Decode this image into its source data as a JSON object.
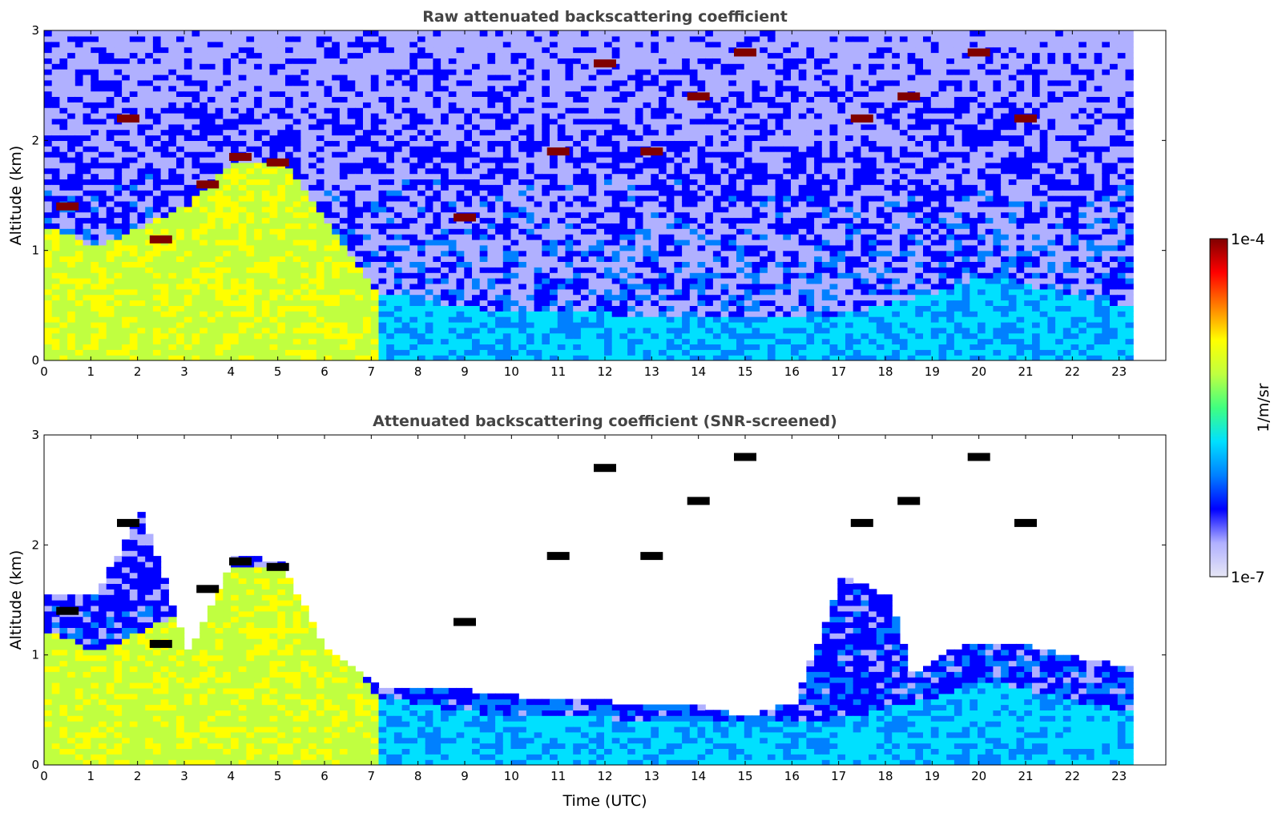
{
  "chart_data": [
    {
      "type": "heatmap",
      "title": "Raw attenuated backscattering coefficient",
      "xlabel": "",
      "ylabel": "Altitude (km)",
      "xlim": [
        0,
        24
      ],
      "ylim": [
        0,
        3
      ],
      "xticks": [
        "0",
        "1",
        "2",
        "3",
        "4",
        "5",
        "6",
        "7",
        "8",
        "9",
        "10",
        "11",
        "12",
        "13",
        "14",
        "15",
        "16",
        "17",
        "18",
        "19",
        "20",
        "21",
        "22",
        "23"
      ],
      "yticks": [
        "0",
        "1",
        "2",
        "3"
      ],
      "data_end_time": 23.3,
      "layers": [
        {
          "name": "boundary layer (aerosol)",
          "points": [
            [
              0,
              1.2
            ],
            [
              1,
              1.0
            ],
            [
              2,
              1.2
            ],
            [
              3,
              1.4
            ],
            [
              4,
              1.8
            ],
            [
              5,
              1.8
            ],
            [
              7,
              0.6
            ],
            [
              9.2,
              0.45
            ],
            [
              12,
              0.4
            ],
            [
              15,
              0.35
            ],
            [
              17,
              0.4
            ],
            [
              19,
              0.6
            ],
            [
              20,
              0.75
            ],
            [
              22,
              0.55
            ],
            [
              23.3,
              0.45
            ]
          ]
        },
        {
          "name": "cloud tops",
          "points": [
            [
              0.5,
              1.4
            ],
            [
              1.8,
              2.2
            ],
            [
              2.5,
              1.1
            ],
            [
              3.5,
              1.6
            ],
            [
              4.2,
              1.85
            ],
            [
              5.0,
              1.8
            ],
            [
              9.0,
              1.3
            ],
            [
              11.0,
              1.9
            ],
            [
              12.0,
              2.7
            ],
            [
              13.0,
              1.9
            ],
            [
              14.0,
              2.4
            ],
            [
              15.0,
              2.8
            ],
            [
              17.5,
              2.2
            ],
            [
              18.5,
              2.4
            ],
            [
              20.0,
              2.8
            ],
            [
              21.0,
              2.2
            ]
          ]
        }
      ]
    },
    {
      "type": "heatmap",
      "title": "Attenuated backscattering coefficient (SNR-screened)",
      "xlabel": "Time (UTC)",
      "ylabel": "Altitude (km)",
      "xlim": [
        0,
        24
      ],
      "ylim": [
        0,
        3
      ],
      "xticks": [
        "0",
        "1",
        "2",
        "3",
        "4",
        "5",
        "6",
        "7",
        "8",
        "9",
        "10",
        "11",
        "12",
        "13",
        "14",
        "15",
        "16",
        "17",
        "18",
        "19",
        "20",
        "21",
        "22",
        "23"
      ],
      "yticks": [
        "0",
        "1",
        "2",
        "3"
      ],
      "data_end_time": 23.3,
      "screened_top": [
        [
          0,
          1.5
        ],
        [
          1,
          1.5
        ],
        [
          2,
          2.3
        ],
        [
          3,
          1.0
        ],
        [
          4,
          1.9
        ],
        [
          5,
          1.8
        ],
        [
          6,
          1.0
        ],
        [
          7,
          0.7
        ],
        [
          9,
          0.65
        ],
        [
          10,
          0.6
        ],
        [
          12,
          0.55
        ],
        [
          14,
          0.5
        ],
        [
          15,
          0.42
        ],
        [
          16,
          0.55
        ],
        [
          17,
          1.7
        ],
        [
          18,
          1.5
        ],
        [
          18.5,
          0.8
        ],
        [
          19.5,
          1.05
        ],
        [
          21,
          1.05
        ],
        [
          22,
          0.95
        ],
        [
          23.3,
          0.85
        ]
      ]
    }
  ],
  "colorbar": {
    "label": "1/m/sr",
    "max_label": "1e-4",
    "min_label": "1e-7",
    "colors": [
      "#e6e6f5",
      "#b0b0ff",
      "#0000ff",
      "#0080ff",
      "#00e0ff",
      "#40ff80",
      "#c0ff40",
      "#ffff00",
      "#ff8000",
      "#ff0000",
      "#800000"
    ]
  }
}
